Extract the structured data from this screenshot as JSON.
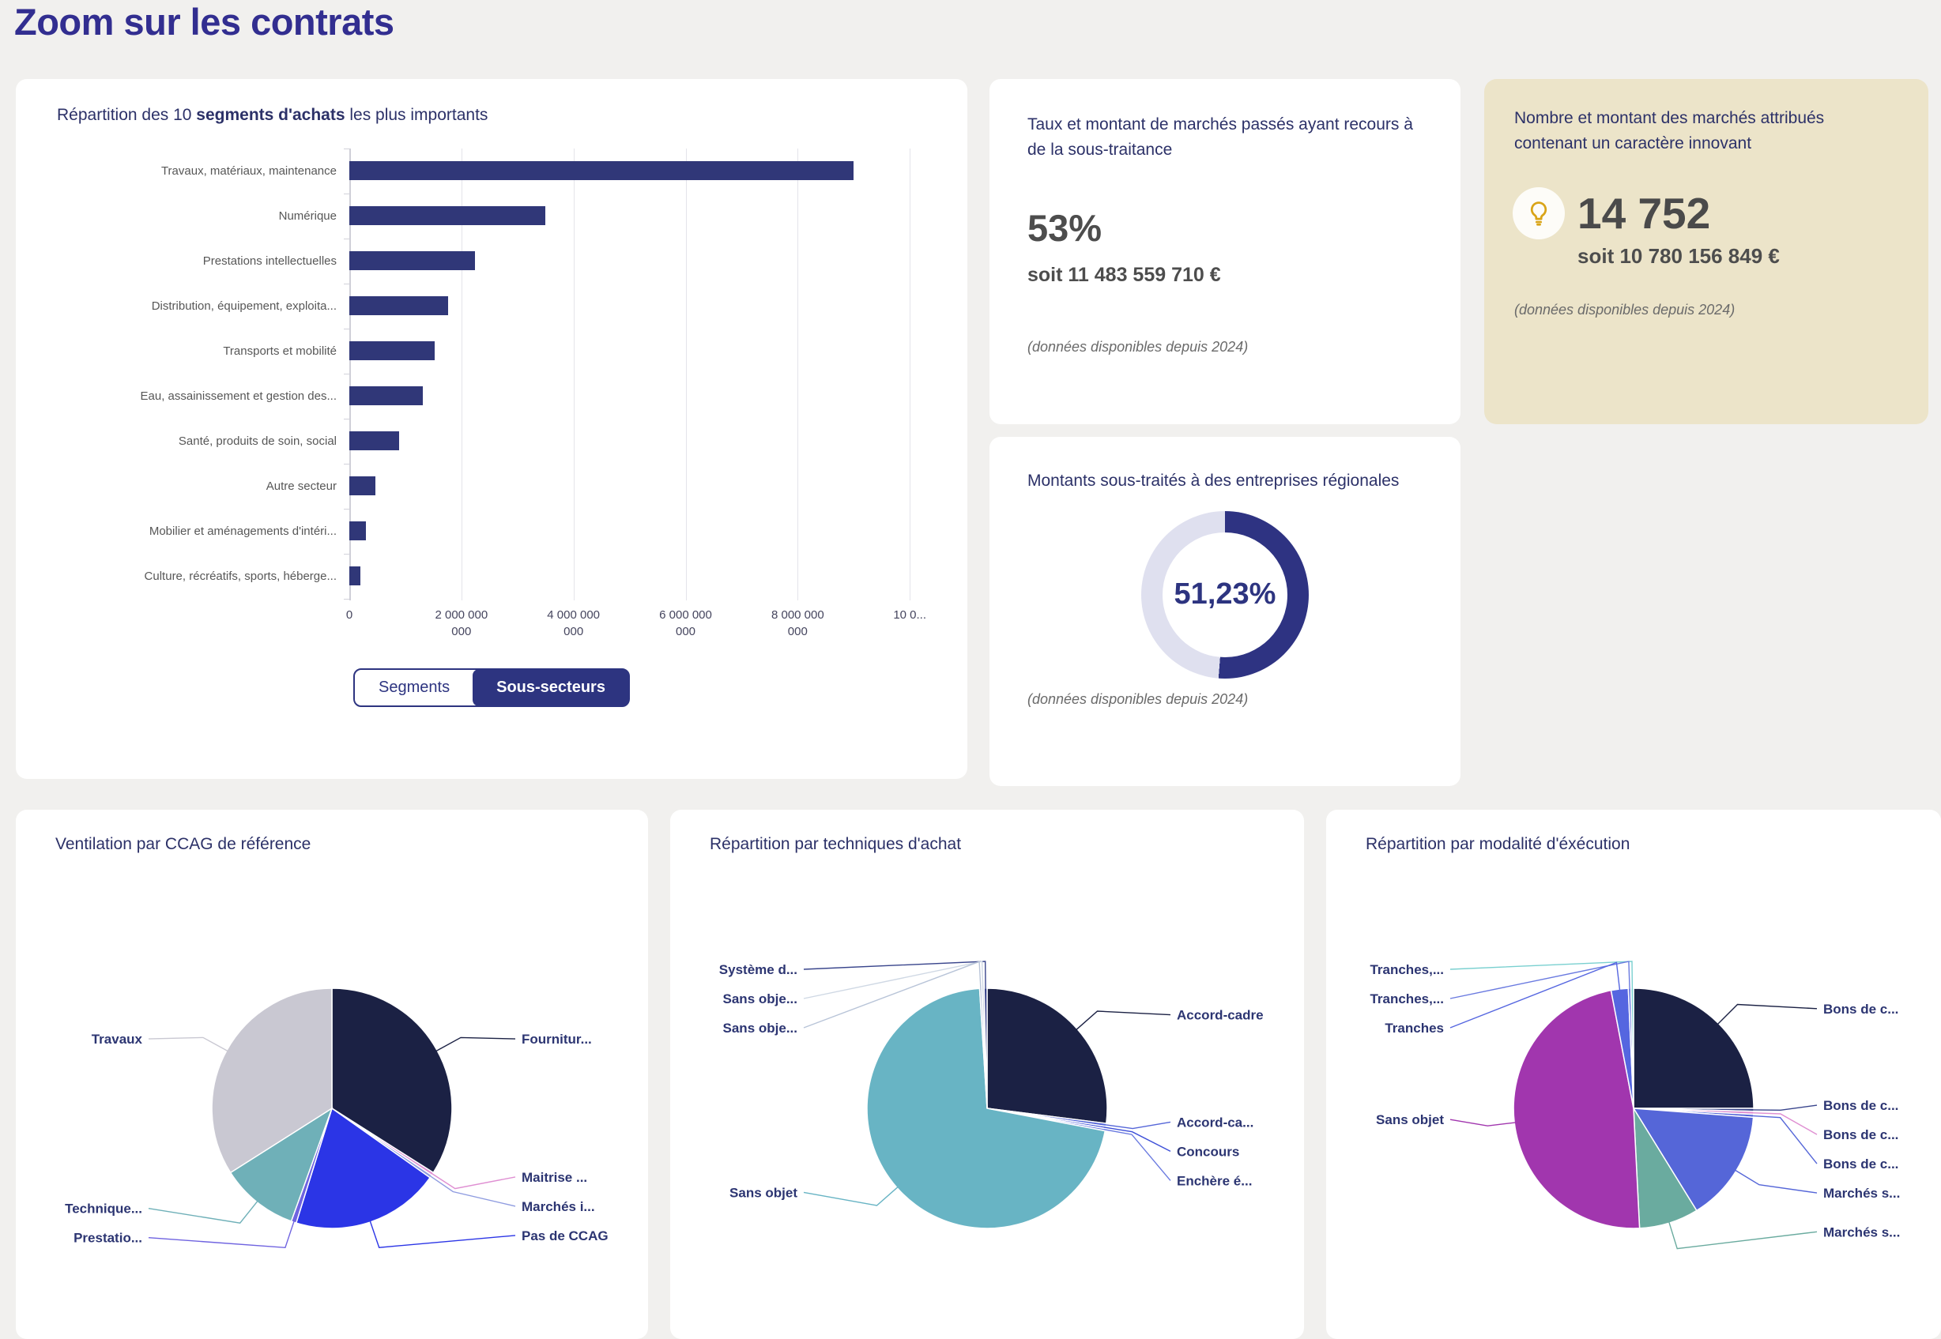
{
  "page": {
    "title": "Zoom sur les contrats"
  },
  "colors": {
    "page_background": "#f1f0ee",
    "card_background": "#ffffff",
    "beige_background": "#ece4c9",
    "title_navy": "#322e90",
    "panel_title_navy": "#2c3168",
    "stat_gray": "#4d4d4d",
    "accent_navy": "#2d3480"
  },
  "bar_panel": {
    "toggle_segments": "Segments",
    "toggle_sous_secteurs": "Sous-secteurs"
  },
  "subcontract_panel": {
    "title": "Taux et montant de marchés passés ayant recours à de la sous-traitance",
    "stat": "53%",
    "amount": "soit 11 483 559 710 €",
    "footnote": "(données disponibles depuis 2024)"
  },
  "innovation_panel": {
    "title": "Nombre et montant des marchés attribués contenant un caractère innovant",
    "icon": "lightbulb-icon",
    "stat": "14 752",
    "amount": "soit 10 780 156 849 €",
    "footnote": "(données disponibles depuis 2024)"
  },
  "regional_panel": {
    "footnote": "(données disponibles depuis 2024)"
  },
  "chart_data": [
    {
      "type": "bar",
      "title_prefix": "Répartition des 10 ",
      "title_bold": "segments d'achats",
      "title_suffix": " les plus importants",
      "categories": [
        "Travaux, matériaux, maintenance",
        "Numérique",
        "Prestations intellectuelles",
        "Distribution, équipement, exploita...",
        "Transports et mobilité",
        "Eau, assainissement et gestion des...",
        "Santé, produits de soin, social",
        "Autre secteur",
        "Mobilier et aménagements d'intéri...",
        "Culture, récréatifs, sports, héberge..."
      ],
      "values": [
        8990000000,
        3490000000,
        2240000000,
        1760000000,
        1520000000,
        1310000000,
        890000000,
        460000000,
        290000000,
        200000000
      ],
      "bar_color": "#303778",
      "xlim": [
        0,
        10350000000
      ],
      "grid": true,
      "xticks": [
        {
          "value": 0,
          "lines": [
            "0"
          ]
        },
        {
          "value": 2000000000,
          "lines": [
            "2 000 000",
            "000"
          ]
        },
        {
          "value": 4000000000,
          "lines": [
            "4 000 000",
            "000"
          ]
        },
        {
          "value": 6000000000,
          "lines": [
            "6 000 000",
            "000"
          ]
        },
        {
          "value": 8000000000,
          "lines": [
            "8 000 000",
            "000"
          ]
        },
        {
          "value": 10000000000,
          "lines": [
            "10 0..."
          ]
        }
      ]
    },
    {
      "type": "pie",
      "title": "Ventilation par CCAG de référence",
      "slices": [
        {
          "label": "Fournitur...",
          "value": 34,
          "color": "#1b2144"
        },
        {
          "label": "Maitrise ...",
          "value": 0.4,
          "color": "#df8fd2"
        },
        {
          "label": "Marchés i...",
          "value": 0.4,
          "color": "#8f9ce0"
        },
        {
          "label": "Pas de CCAG",
          "value": 20,
          "color": "#2b35e6"
        },
        {
          "label": "Prestatio...",
          "value": 0.7,
          "color": "#6f63e0"
        },
        {
          "label": "Technique...",
          "value": 10.5,
          "color": "#6fb0b8"
        },
        {
          "label": "Travaux",
          "value": 34,
          "color": "#c9c8d2"
        }
      ]
    },
    {
      "type": "pie",
      "title": "Répartition par techniques d'achat",
      "slices": [
        {
          "label": "Accord-cadre",
          "value": 27,
          "color": "#1b2144"
        },
        {
          "label": "Accord-ca...",
          "value": 0.4,
          "color": "#5566d8"
        },
        {
          "label": "Concours",
          "value": 0.3,
          "color": "#3d4fd8"
        },
        {
          "label": "Enchère é...",
          "value": 0.3,
          "color": "#6a7ae0"
        },
        {
          "label": "Sans objet",
          "value": 71,
          "color": "#68b4c4"
        },
        {
          "label": "Sans obje...",
          "value": 0.3,
          "color": "#b8c4d8"
        },
        {
          "label": "Sans obje...",
          "value": 0.3,
          "color": "#cfd8e4"
        },
        {
          "label": "Système d...",
          "value": 0.4,
          "color": "#39458c"
        }
      ]
    },
    {
      "type": "pie",
      "title": "Répartition par modalité d'éxécution",
      "slices": [
        {
          "label": "Bons de c...",
          "value": 25,
          "color": "#1b2144"
        },
        {
          "label": "Bons de c...",
          "value": 0.4,
          "color": "#39458c"
        },
        {
          "label": "Bons de c...",
          "value": 0.4,
          "color": "#df8fd2"
        },
        {
          "label": "Bons de c...",
          "value": 0.4,
          "color": "#5566d8"
        },
        {
          "label": "Marchés s...",
          "value": 15,
          "color": "#5566d8"
        },
        {
          "label": "Marchés s...",
          "value": 8,
          "color": "#6aab9f"
        },
        {
          "label": "Sans objet",
          "value": 47.8,
          "color": "#a136ae"
        },
        {
          "label": "Tranches",
          "value": 2.3,
          "color": "#5566e0"
        },
        {
          "label": "Tranches,...",
          "value": 0.35,
          "color": "#6a7ae0"
        },
        {
          "label": "Tranches,...",
          "value": 0.35,
          "color": "#7ad0d0"
        }
      ]
    },
    {
      "type": "donut",
      "title": "Montants sous-traités à des entreprises régionales",
      "value_pct": 51.23,
      "value_label": "51,23%",
      "color": "#2e3382",
      "track_color": "#dfe0ef"
    }
  ]
}
